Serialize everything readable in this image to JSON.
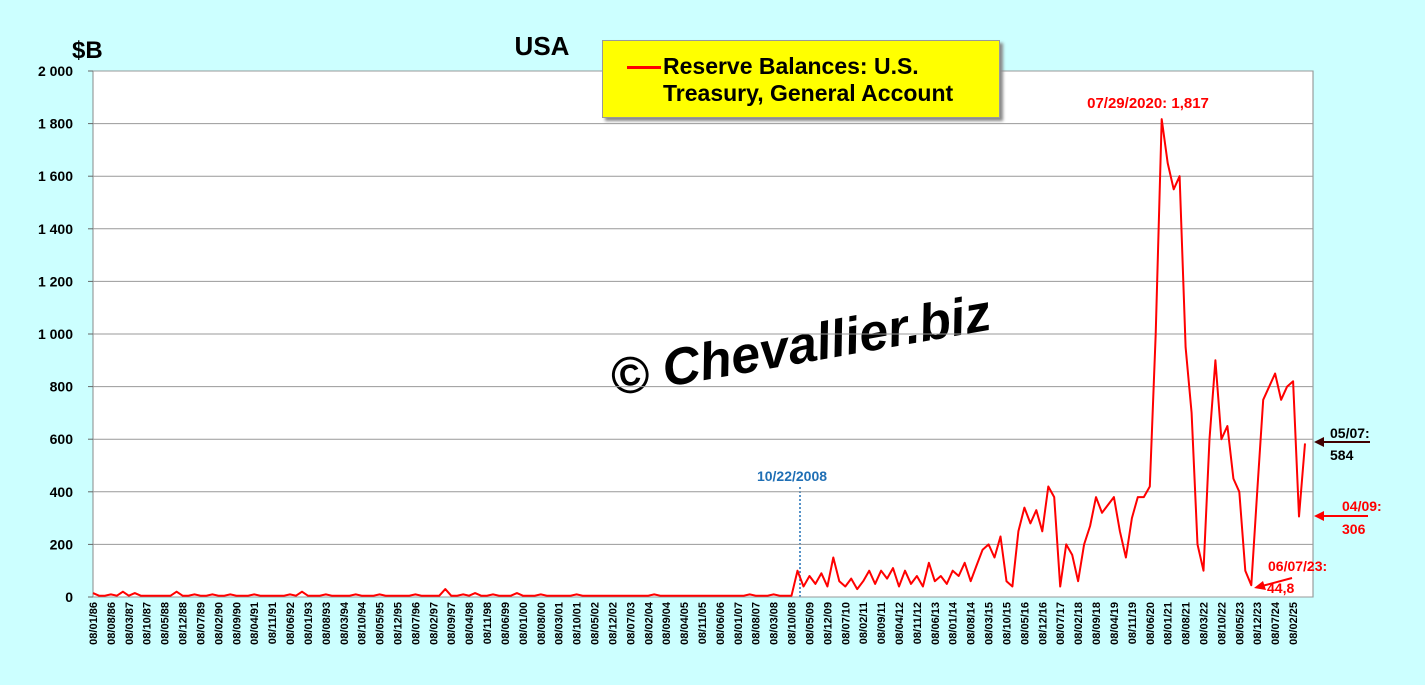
{
  "chart_data": {
    "type": "line",
    "title": "USA",
    "y_unit": "$B",
    "watermark": "© Chevallier.biz",
    "annotations": {
      "peak": "07/29/2020: 1,817",
      "crisis": "10/22/2008",
      "last_date": "05/07:",
      "last_value": "584",
      "april_date": "04/09:",
      "april_value": "306",
      "low_date": "06/07/23:",
      "low_value": "44,8"
    },
    "ylim": [
      0,
      2000
    ],
    "yticks": [
      0,
      200,
      400,
      600,
      800,
      {
        "value": 1000,
        "label": "1 000"
      },
      {
        "value": 1200,
        "label": "1 200"
      },
      {
        "value": 1400,
        "label": "1 400"
      },
      {
        "value": 1600,
        "label": "1 600"
      },
      {
        "value": 1800,
        "label": "1 800"
      },
      {
        "value": 2000,
        "label": "2 000"
      }
    ],
    "grid": true,
    "categories": [
      "08/01/86",
      null,
      null,
      "08/08/86",
      null,
      null,
      "08/03/87",
      null,
      null,
      "08/10/87",
      null,
      null,
      "08/05/88",
      null,
      null,
      "08/12/88",
      null,
      null,
      "08/07/89",
      null,
      null,
      "08/02/90",
      null,
      null,
      "08/09/90",
      null,
      null,
      "08/04/91",
      null,
      null,
      "08/11/91",
      null,
      null,
      "08/06/92",
      null,
      null,
      "08/01/93",
      null,
      null,
      "08/08/93",
      null,
      null,
      "08/03/94",
      null,
      null,
      "08/10/94",
      null,
      null,
      "08/05/95",
      null,
      null,
      "08/12/95",
      null,
      null,
      "08/07/96",
      null,
      null,
      "08/02/97",
      null,
      null,
      "08/09/97",
      null,
      null,
      "08/04/98",
      null,
      null,
      "08/11/98",
      null,
      null,
      "08/06/99",
      null,
      null,
      "08/01/00",
      null,
      null,
      "08/08/00",
      null,
      null,
      "08/03/01",
      null,
      null,
      "08/10/01",
      null,
      null,
      "08/05/02",
      null,
      null,
      "08/12/02",
      null,
      null,
      "08/07/03",
      null,
      null,
      "08/02/04",
      null,
      null,
      "08/09/04",
      null,
      null,
      "08/04/05",
      null,
      null,
      "08/11/05",
      null,
      null,
      "08/06/06",
      null,
      null,
      "08/01/07",
      null,
      null,
      "08/08/07",
      null,
      null,
      "08/03/08",
      null,
      null,
      "08/10/08",
      null,
      null,
      "08/05/09",
      null,
      null,
      "08/12/09",
      null,
      null,
      "08/07/10",
      null,
      null,
      "08/02/11",
      null,
      null,
      "08/09/11",
      null,
      null,
      "08/04/12",
      null,
      null,
      "08/11/12",
      null,
      null,
      "08/06/13",
      null,
      null,
      "08/01/14",
      null,
      null,
      "08/08/14",
      null,
      null,
      "08/03/15",
      null,
      null,
      "08/10/15",
      null,
      null,
      "08/05/16",
      null,
      null,
      "08/12/16",
      null,
      null,
      "08/07/17",
      null,
      null,
      "08/02/18",
      null,
      null,
      "08/09/18",
      null,
      null,
      "08/04/19",
      null,
      null,
      "08/11/19",
      null,
      null,
      "08/06/20",
      null,
      null,
      "08/01/21",
      null,
      null,
      "08/08/21",
      null,
      null,
      "08/03/22",
      null,
      null,
      "08/10/22",
      null,
      null,
      "08/05/23",
      null,
      null,
      "08/12/23",
      null,
      null,
      "08/07/24",
      null,
      null,
      "08/02/25",
      null,
      null
    ],
    "series": [
      {
        "name": "Reserve Balances: U.S. Treasury, General Account",
        "color": "#ff0000",
        "values": [
          15,
          5,
          5,
          10,
          5,
          20,
          5,
          15,
          5,
          5,
          5,
          5,
          5,
          5,
          20,
          5,
          5,
          10,
          5,
          5,
          10,
          5,
          5,
          10,
          5,
          5,
          5,
          10,
          5,
          5,
          5,
          5,
          5,
          10,
          5,
          20,
          5,
          5,
          5,
          10,
          5,
          5,
          5,
          5,
          10,
          5,
          5,
          5,
          10,
          5,
          5,
          5,
          5,
          5,
          10,
          5,
          5,
          5,
          5,
          30,
          5,
          5,
          10,
          5,
          15,
          5,
          5,
          10,
          5,
          5,
          5,
          15,
          5,
          5,
          5,
          10,
          5,
          5,
          5,
          5,
          5,
          10,
          5,
          5,
          5,
          5,
          5,
          5,
          5,
          5,
          5,
          5,
          5,
          5,
          10,
          5,
          5,
          5,
          5,
          5,
          5,
          5,
          5,
          5,
          5,
          5,
          5,
          5,
          5,
          5,
          10,
          5,
          5,
          5,
          10,
          5,
          5,
          5,
          100,
          40,
          80,
          50,
          90,
          40,
          150,
          60,
          40,
          70,
          30,
          60,
          100,
          50,
          100,
          70,
          110,
          40,
          100,
          50,
          80,
          40,
          130,
          60,
          80,
          50,
          100,
          80,
          130,
          60,
          120,
          180,
          200,
          150,
          230,
          60,
          40,
          250,
          340,
          280,
          330,
          250,
          420,
          380,
          40,
          200,
          160,
          60,
          200,
          270,
          380,
          320,
          350,
          380,
          250,
          150,
          300,
          380,
          380,
          420,
          1000,
          1817,
          1650,
          1550,
          1600,
          950,
          700,
          200,
          100,
          600,
          900,
          600,
          650,
          450,
          400,
          100,
          44.8,
          400,
          750,
          800,
          850,
          750,
          800,
          820,
          306,
          584
        ]
      }
    ]
  }
}
